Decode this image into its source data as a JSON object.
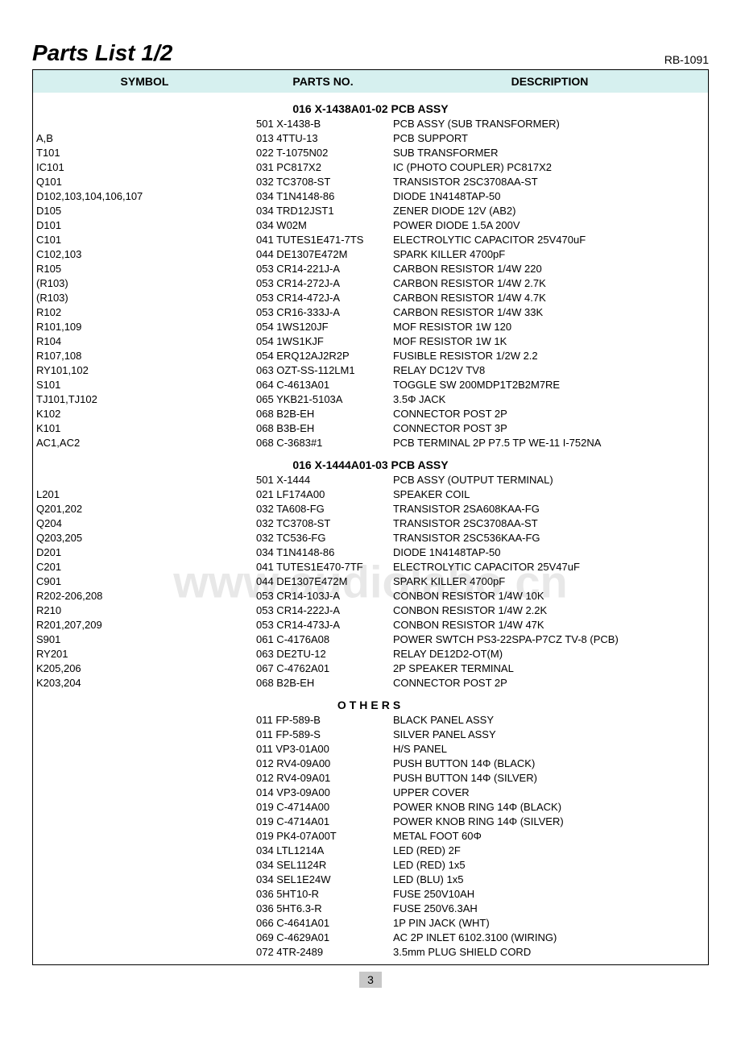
{
  "header": {
    "title": "Parts List 1/2",
    "model": "RB-1091"
  },
  "columns": {
    "symbol": "SYMBOL",
    "parts_no": "PARTS NO.",
    "description": "DESCRIPTION"
  },
  "watermark": "www.audiolabo.cn",
  "page_number": "3",
  "sections": [
    {
      "title": "016 X-1438A01-02 PCB ASSY",
      "style": "normal",
      "rows": [
        {
          "symbol": "",
          "part": "501 X-1438-B",
          "desc": "PCB ASSY (SUB TRANSFORMER)"
        },
        {
          "symbol": "A,B",
          "part": "013 4TTU-13",
          "desc": "PCB SUPPORT"
        },
        {
          "symbol": "T101",
          "part": "022 T-1075N02",
          "desc": "SUB TRANSFORMER"
        },
        {
          "symbol": "IC101",
          "part": "031 PC817X2",
          "desc": "IC (PHOTO COUPLER) PC817X2"
        },
        {
          "symbol": "Q101",
          "part": "032 TC3708-ST",
          "desc": "TRANSISTOR 2SC3708AA-ST"
        },
        {
          "symbol": "D102,103,104,106,107",
          "part": "034 T1N4148-86",
          "desc": "DIODE 1N4148TAP-50"
        },
        {
          "symbol": "D105",
          "part": "034 TRD12JST1",
          "desc": "ZENER DIODE 12V (AB2)"
        },
        {
          "symbol": "D101",
          "part": "034 W02M",
          "desc": "POWER DIODE 1.5A 200V"
        },
        {
          "symbol": "C101",
          "part": "041 TUTES1E471-7TS",
          "desc": "ELECTROLYTIC CAPACITOR 25V470uF"
        },
        {
          "symbol": "C102,103",
          "part": "044 DE1307E472M",
          "desc": "SPARK KILLER 4700pF"
        },
        {
          "symbol": "R105",
          "part": "053 CR14-221J-A",
          "desc": "CARBON RESISTOR 1/4W 220"
        },
        {
          "symbol": "(R103)",
          "part": "053 CR14-272J-A",
          "desc": "CARBON RESISTOR 1/4W 2.7K"
        },
        {
          "symbol": "(R103)",
          "part": "053 CR14-472J-A",
          "desc": "CARBON RESISTOR 1/4W 4.7K"
        },
        {
          "symbol": "R102",
          "part": "053 CR16-333J-A",
          "desc": "CARBON RESISTOR 1/4W 33K"
        },
        {
          "symbol": "R101,109",
          "part": "054 1WS120JF",
          "desc": "MOF RESISTOR 1W 120"
        },
        {
          "symbol": "R104",
          "part": "054 1WS1KJF",
          "desc": "MOF RESISTOR 1W 1K"
        },
        {
          "symbol": "R107,108",
          "part": "054 ERQ12AJ2R2P",
          "desc": "FUSIBLE RESISTOR 1/2W 2.2"
        },
        {
          "symbol": "RY101,102",
          "part": "063 OZT-SS-112LM1",
          "desc": "RELAY DC12V TV8"
        },
        {
          "symbol": "S101",
          "part": "064 C-4613A01",
          "desc": "TOGGLE SW 200MDP1T2B2M7RE"
        },
        {
          "symbol": "TJ101,TJ102",
          "part": "065 YKB21-5103A",
          "desc": "3.5Φ JACK"
        },
        {
          "symbol": "K102",
          "part": "068 B2B-EH",
          "desc": "CONNECTOR POST 2P"
        },
        {
          "symbol": "K101",
          "part": "068 B3B-EH",
          "desc": "CONNECTOR POST 3P"
        },
        {
          "symbol": "AC1,AC2",
          "part": "068 C-3683#1",
          "desc": "PCB TERMINAL 2P P7.5 TP WE-11 I-752NA"
        }
      ]
    },
    {
      "title": "016 X-1444A01-03 PCB ASSY",
      "style": "normal",
      "watermark": true,
      "rows": [
        {
          "symbol": "",
          "part": "501 X-1444",
          "desc": "PCB ASSY (OUTPUT TERMINAL)"
        },
        {
          "symbol": "L201",
          "part": "021 LF174A00",
          "desc": "SPEAKER COIL"
        },
        {
          "symbol": "Q201,202",
          "part": "032 TA608-FG",
          "desc": "TRANSISTOR 2SA608KAA-FG"
        },
        {
          "symbol": "Q204",
          "part": "032 TC3708-ST",
          "desc": "TRANSISTOR 2SC3708AA-ST"
        },
        {
          "symbol": "Q203,205",
          "part": "032 TC536-FG",
          "desc": "TRANSISTOR 2SC536KAA-FG"
        },
        {
          "symbol": "D201",
          "part": "034 T1N4148-86",
          "desc": "DIODE 1N4148TAP-50"
        },
        {
          "symbol": "C201",
          "part": "041 TUTES1E470-7TF",
          "desc": "ELECTROLYTIC CAPACITOR 25V47uF"
        },
        {
          "symbol": "C901",
          "part": "044 DE1307E472M",
          "desc": "SPARK KILLER 4700pF"
        },
        {
          "symbol": "R202-206,208",
          "part": "053 CR14-103J-A",
          "desc": "CONBON RESISTOR 1/4W 10K"
        },
        {
          "symbol": "R210",
          "part": "053 CR14-222J-A",
          "desc": "CONBON RESISTOR 1/4W 2.2K"
        },
        {
          "symbol": "R201,207,209",
          "part": "053 CR14-473J-A",
          "desc": "CONBON RESISTOR 1/4W 47K"
        },
        {
          "symbol": "S901",
          "part": "061 C-4176A08",
          "desc": "POWER SWTCH PS3-22SPA-P7CZ TV-8 (PCB)"
        },
        {
          "symbol": "RY201",
          "part": "063 DE2TU-12",
          "desc": "RELAY DE12D2-OT(M)"
        },
        {
          "symbol": "K205,206",
          "part": "067 C-4762A01",
          "desc": "2P SPEAKER TERMINAL"
        },
        {
          "symbol": "K203,204",
          "part": "068 B2B-EH",
          "desc": "CONNECTOR POST 2P"
        }
      ]
    },
    {
      "title": "OTHERS",
      "style": "others",
      "rows": [
        {
          "symbol": "",
          "part": "011 FP-589-B",
          "desc": "BLACK PANEL ASSY"
        },
        {
          "symbol": "",
          "part": "011 FP-589-S",
          "desc": "SILVER PANEL ASSY"
        },
        {
          "symbol": "",
          "part": "011 VP3-01A00",
          "desc": "H/S PANEL"
        },
        {
          "symbol": "",
          "part": "012 RV4-09A00",
          "desc": "PUSH BUTTON 14Φ (BLACK)"
        },
        {
          "symbol": "",
          "part": "012 RV4-09A01",
          "desc": "PUSH BUTTON 14Φ (SILVER)"
        },
        {
          "symbol": "",
          "part": "014 VP3-09A00",
          "desc": "UPPER COVER"
        },
        {
          "symbol": "",
          "part": "019 C-4714A00",
          "desc": "POWER KNOB RING 14Φ (BLACK)"
        },
        {
          "symbol": "",
          "part": "019 C-4714A01",
          "desc": "POWER KNOB RING 14Φ (SILVER)"
        },
        {
          "symbol": "",
          "part": "019 PK4-07A00T",
          "desc": "METAL FOOT 60Φ"
        },
        {
          "symbol": "",
          "part": "034 LTL1214A",
          "desc": "LED (RED) 2F"
        },
        {
          "symbol": "",
          "part": "034 SEL1124R",
          "desc": "LED (RED) 1x5"
        },
        {
          "symbol": "",
          "part": "034 SEL1E24W",
          "desc": "LED (BLU) 1x5"
        },
        {
          "symbol": "",
          "part": "036 5HT10-R",
          "desc": "FUSE 250V10AH"
        },
        {
          "symbol": "",
          "part": "036 5HT6.3-R",
          "desc": "FUSE 250V6.3AH"
        },
        {
          "symbol": "",
          "part": "066 C-4641A01",
          "desc": "1P PIN JACK (WHT)"
        },
        {
          "symbol": "",
          "part": "069 C-4629A01",
          "desc": "AC 2P INLET 6102.3100 (WIRING)"
        },
        {
          "symbol": "",
          "part": "072 4TR-2489",
          "desc": "3.5mm PLUG SHIELD CORD"
        }
      ]
    }
  ]
}
